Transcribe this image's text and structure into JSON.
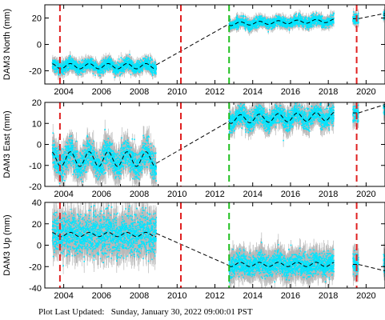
{
  "footer": {
    "label": "Plot Last Updated:",
    "value": "Sunday, January 30, 2022 09:00:01 PST"
  },
  "colors": {
    "data": "#00e5ff",
    "errorbar": "#b8b8b8",
    "model": "#000000",
    "red_line": "#e02020",
    "green_line": "#20c020"
  },
  "chart_data": [
    {
      "type": "scatter",
      "ylabel": "DAM3 North (mm)",
      "xlim": [
        2003.0,
        2021.0
      ],
      "ylim": [
        -30,
        30
      ],
      "yticks": [
        -20,
        0,
        20
      ],
      "xticks": [
        2004,
        2006,
        2008,
        2010,
        2012,
        2014,
        2016,
        2018,
        2020
      ],
      "grid": false,
      "event_lines": [
        {
          "x": 2003.8,
          "color": "red"
        },
        {
          "x": 2010.2,
          "color": "red"
        },
        {
          "x": 2012.75,
          "color": "green"
        },
        {
          "x": 2019.5,
          "color": "red"
        }
      ],
      "segments": [
        {
          "x_start": 2003.4,
          "x_end": 2008.9,
          "offset": -16.5,
          "trend": 0.0,
          "amplitude": 2.0,
          "noise": 2.2,
          "error": 3.0
        },
        {
          "x_start": 2012.75,
          "x_end": 2018.3,
          "offset": 15.5,
          "trend": 0.45,
          "amplitude": 1.3,
          "noise": 1.8,
          "error": 2.5
        },
        {
          "x_start": 2019.3,
          "x_end": 2019.6,
          "offset": 19.5,
          "trend": 0.0,
          "amplitude": 0.0,
          "noise": 1.8,
          "error": 2.5
        },
        {
          "x_start": 2020.92,
          "x_end": 2021.0,
          "offset": 22.0,
          "trend": 0.0,
          "amplitude": 0.0,
          "noise": 1.5,
          "error": 2.5
        }
      ],
      "model_gaps": [
        [
          2008.9,
          2012.75
        ],
        [
          2019.6,
          2021.0
        ]
      ],
      "model_gap_values": [
        [
          -15.5,
          15.5
        ],
        [
          19.5,
          23.5
        ]
      ]
    },
    {
      "type": "scatter",
      "ylabel": "DAM3 East (mm)",
      "xlim": [
        2003.0,
        2021.0
      ],
      "ylim": [
        -20,
        20
      ],
      "yticks": [
        -20,
        -10,
        0,
        10,
        20
      ],
      "xticks": [
        2004,
        2006,
        2008,
        2010,
        2012,
        2014,
        2016,
        2018,
        2020
      ],
      "grid": false,
      "event_lines": [
        {
          "x": 2003.8,
          "color": "red"
        },
        {
          "x": 2010.2,
          "color": "red"
        },
        {
          "x": 2012.75,
          "color": "green"
        },
        {
          "x": 2019.5,
          "color": "red"
        }
      ],
      "segments": [
        {
          "x_start": 2003.4,
          "x_end": 2008.9,
          "offset": -7.0,
          "trend": 0.0,
          "amplitude": 3.5,
          "noise": 3.2,
          "error": 4.0
        },
        {
          "x_start": 2012.75,
          "x_end": 2018.3,
          "offset": 12.0,
          "trend": 0.25,
          "amplitude": 2.0,
          "noise": 2.2,
          "error": 3.0
        },
        {
          "x_start": 2019.3,
          "x_end": 2019.6,
          "offset": 15.0,
          "trend": 0.0,
          "amplitude": 0.0,
          "noise": 2.0,
          "error": 3.0
        },
        {
          "x_start": 2020.92,
          "x_end": 2021.0,
          "offset": 18.0,
          "trend": 0.0,
          "amplitude": 0.0,
          "noise": 1.5,
          "error": 3.0
        }
      ],
      "model_gaps": [
        [
          2008.9,
          2012.75
        ],
        [
          2019.6,
          2021.0
        ]
      ],
      "model_gap_values": [
        [
          -9.0,
          11.0
        ],
        [
          15.0,
          19.0
        ]
      ]
    },
    {
      "type": "scatter",
      "ylabel": "DAM3 Up (mm)",
      "xlim": [
        2003.0,
        2021.0
      ],
      "ylim": [
        -40,
        40
      ],
      "yticks": [
        -40,
        -20,
        0,
        20,
        40
      ],
      "xticks": [
        2004,
        2006,
        2008,
        2010,
        2012,
        2014,
        2016,
        2018,
        2020
      ],
      "grid": false,
      "event_lines": [
        {
          "x": 2003.8,
          "color": "red"
        },
        {
          "x": 2010.2,
          "color": "red"
        },
        {
          "x": 2012.75,
          "color": "green"
        },
        {
          "x": 2019.5,
          "color": "red"
        }
      ],
      "segments": [
        {
          "x_start": 2003.4,
          "x_end": 2008.9,
          "offset": 10.0,
          "trend": 0.0,
          "amplitude": 2.0,
          "noise": 9.0,
          "error": 10.0
        },
        {
          "x_start": 2012.75,
          "x_end": 2018.3,
          "offset": -18.0,
          "trend": 0.0,
          "amplitude": 2.0,
          "noise": 5.0,
          "error": 8.0
        },
        {
          "x_start": 2019.3,
          "x_end": 2019.6,
          "offset": -18.0,
          "trend": 0.0,
          "amplitude": 0.0,
          "noise": 5.0,
          "error": 8.0
        },
        {
          "x_start": 2020.92,
          "x_end": 2021.0,
          "offset": -20.0,
          "trend": 0.0,
          "amplitude": 0.0,
          "noise": 5.0,
          "error": 8.0
        }
      ],
      "model_gaps": [
        [
          2008.9,
          2012.75
        ],
        [
          2019.6,
          2021.0
        ]
      ],
      "model_gap_values": [
        [
          11.0,
          -19.0
        ],
        [
          -18.0,
          -24.0
        ]
      ]
    }
  ]
}
